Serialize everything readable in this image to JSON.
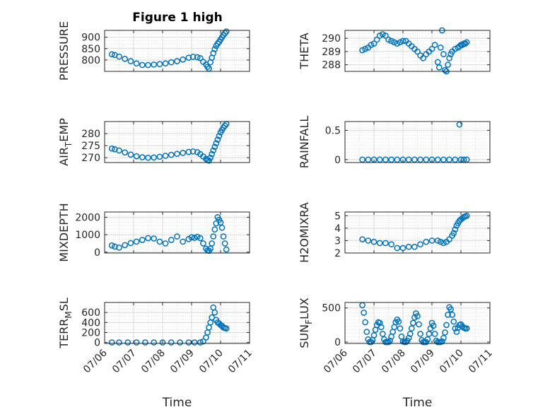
{
  "figure": {
    "title": "Figure 1 high",
    "marker_color": "#0072BD",
    "x_tick_labels": [
      "07/06",
      "07/07",
      "07/08",
      "07/09",
      "07/10",
      "07/11"
    ],
    "x_label": "Time"
  },
  "chart_data": [
    {
      "type": "scatter",
      "marker": "circle",
      "id": "pressure",
      "title": "Figure 1 high",
      "ylabel_parts": [
        "PRESSURE"
      ],
      "ylim": [
        750,
        930
      ],
      "yticks": [
        800,
        850,
        900
      ],
      "xlim": [
        0,
        5
      ],
      "x": [
        0.25,
        0.35,
        0.5,
        0.7,
        0.9,
        1.1,
        1.3,
        1.5,
        1.7,
        1.9,
        2.1,
        2.3,
        2.5,
        2.7,
        2.9,
        3.05,
        3.2,
        3.3,
        3.4,
        3.5,
        3.55,
        3.6,
        3.65,
        3.7,
        3.75,
        3.8,
        3.85,
        3.9,
        3.95,
        4.0,
        4.05,
        4.1,
        4.15,
        4.2
      ],
      "y": [
        825,
        822,
        815,
        805,
        795,
        785,
        778,
        778,
        780,
        782,
        785,
        790,
        795,
        802,
        810,
        814,
        812,
        808,
        792,
        780,
        770,
        762,
        790,
        810,
        830,
        848,
        862,
        872,
        880,
        890,
        900,
        910,
        918,
        925
      ]
    },
    {
      "type": "scatter",
      "marker": "circle",
      "id": "theta",
      "ylabel_parts": [
        "THETA"
      ],
      "ylim": [
        287.5,
        290.6
      ],
      "yticks": [
        288,
        289,
        290
      ],
      "xlim": [
        0,
        5
      ],
      "x": [
        0.6,
        0.7,
        0.8,
        0.9,
        1.0,
        1.1,
        1.2,
        1.3,
        1.4,
        1.5,
        1.6,
        1.7,
        1.8,
        1.9,
        2.0,
        2.1,
        2.2,
        2.3,
        2.4,
        2.5,
        2.6,
        2.7,
        2.8,
        2.9,
        3.0,
        3.1,
        3.2,
        3.25,
        3.3,
        3.35,
        3.4,
        3.45,
        3.5,
        3.55,
        3.6,
        3.65,
        3.7,
        3.8,
        3.9,
        3.95,
        4.0,
        4.05,
        4.1,
        4.15,
        4.2
      ],
      "y": [
        289.1,
        289.2,
        289.3,
        289.5,
        289.6,
        289.9,
        290.2,
        290.3,
        290.2,
        289.9,
        289.8,
        289.7,
        289.6,
        289.7,
        289.8,
        289.8,
        289.6,
        289.4,
        289.2,
        289.0,
        288.7,
        288.5,
        288.8,
        289.0,
        289.2,
        289.5,
        288.2,
        287.8,
        289.3,
        290.6,
        288.8,
        287.6,
        287.5,
        288.0,
        288.5,
        288.8,
        289.0,
        289.2,
        289.3,
        289.4,
        289.5,
        289.5,
        289.6,
        289.6,
        289.7
      ]
    },
    {
      "type": "scatter",
      "marker": "circle",
      "id": "air_temp",
      "ylabel_parts": [
        "AIR",
        "T",
        "EMP"
      ],
      "ylim": [
        268,
        285
      ],
      "yticks": [
        270,
        275,
        280
      ],
      "xlim": [
        0,
        5
      ],
      "x": [
        0.25,
        0.35,
        0.5,
        0.7,
        0.9,
        1.1,
        1.3,
        1.5,
        1.7,
        1.9,
        2.1,
        2.3,
        2.5,
        2.7,
        2.9,
        3.05,
        3.2,
        3.3,
        3.4,
        3.5,
        3.55,
        3.6,
        3.65,
        3.7,
        3.75,
        3.8,
        3.85,
        3.9,
        3.95,
        4.0,
        4.05,
        4.1,
        4.15,
        4.2
      ],
      "y": [
        273.8,
        273.5,
        273.0,
        272.2,
        271.3,
        270.6,
        270.2,
        270.0,
        270.1,
        270.4,
        270.8,
        271.2,
        271.6,
        272.0,
        272.4,
        272.6,
        272.3,
        271.5,
        270.5,
        269.5,
        269.0,
        268.8,
        270.0,
        271.5,
        273.0,
        274.5,
        276.0,
        277.5,
        279.0,
        280.5,
        281.5,
        282.5,
        283.3,
        284.0
      ]
    },
    {
      "type": "scatter",
      "marker": "circle",
      "id": "rainfall",
      "ylabel_parts": [
        "RAINFALL"
      ],
      "ylim": [
        -0.05,
        0.65
      ],
      "yticks": [
        0,
        0.5
      ],
      "ytick_labels": [
        "0",
        "0.5"
      ],
      "xlim": [
        0,
        5
      ],
      "x": [
        0.6,
        0.8,
        1.0,
        1.2,
        1.4,
        1.6,
        1.8,
        2.0,
        2.2,
        2.4,
        2.6,
        2.8,
        3.0,
        3.2,
        3.4,
        3.6,
        3.8,
        3.95,
        4.0,
        4.1,
        4.2
      ],
      "y": [
        0,
        0,
        0,
        0,
        0,
        0,
        0,
        0,
        0,
        0,
        0,
        0,
        0,
        0,
        0,
        0,
        0,
        0.6,
        0,
        0,
        0
      ]
    },
    {
      "type": "scatter",
      "marker": "circle",
      "id": "mixdepth",
      "ylabel_parts": [
        "MIXDEPTH"
      ],
      "ylim": [
        -50,
        2300
      ],
      "yticks": [
        0,
        1000,
        2000
      ],
      "xlim": [
        0,
        5
      ],
      "x": [
        0.25,
        0.35,
        0.5,
        0.7,
        0.9,
        1.1,
        1.3,
        1.5,
        1.7,
        1.9,
        2.1,
        2.3,
        2.5,
        2.7,
        2.9,
        3.0,
        3.1,
        3.2,
        3.3,
        3.4,
        3.5,
        3.55,
        3.6,
        3.65,
        3.7,
        3.75,
        3.8,
        3.85,
        3.9,
        3.95,
        4.0,
        4.05,
        4.1,
        4.15,
        4.2
      ],
      "y": [
        380,
        320,
        260,
        400,
        520,
        600,
        700,
        800,
        780,
        600,
        500,
        700,
        900,
        600,
        750,
        850,
        820,
        880,
        800,
        500,
        200,
        100,
        80,
        200,
        500,
        900,
        1300,
        1650,
        2000,
        1850,
        1700,
        1400,
        900,
        500,
        150
      ]
    },
    {
      "type": "scatter",
      "marker": "circle",
      "id": "h2omixra",
      "ylabel_parts": [
        "H2OMIXRA"
      ],
      "ylim": [
        2,
        5.3
      ],
      "yticks": [
        2,
        3,
        4,
        5
      ],
      "xlim": [
        0,
        5
      ],
      "x": [
        0.6,
        0.8,
        1.0,
        1.2,
        1.4,
        1.6,
        1.8,
        2.0,
        2.2,
        2.4,
        2.6,
        2.8,
        3.0,
        3.2,
        3.3,
        3.4,
        3.5,
        3.6,
        3.7,
        3.75,
        3.8,
        3.85,
        3.9,
        3.95,
        4.0,
        4.05,
        4.1,
        4.15,
        4.2
      ],
      "y": [
        3.1,
        3.0,
        2.9,
        2.8,
        2.8,
        2.7,
        2.4,
        2.4,
        2.5,
        2.5,
        2.7,
        2.9,
        3.0,
        3.0,
        2.9,
        2.8,
        2.9,
        3.1,
        3.4,
        3.6,
        3.9,
        4.2,
        4.4,
        4.6,
        4.7,
        4.8,
        4.9,
        4.95,
        5.0
      ]
    },
    {
      "type": "scatter",
      "marker": "circle",
      "id": "terr_msl",
      "ylabel_parts": [
        "TERR",
        "M",
        "SL"
      ],
      "ylim": [
        -20,
        800
      ],
      "yticks": [
        0,
        200,
        400,
        600
      ],
      "xlim": [
        0,
        5
      ],
      "x": [
        0.25,
        0.5,
        0.8,
        1.1,
        1.4,
        1.7,
        2.0,
        2.3,
        2.6,
        2.9,
        3.1,
        3.3,
        3.4,
        3.5,
        3.55,
        3.6,
        3.65,
        3.7,
        3.75,
        3.8,
        3.85,
        3.9,
        3.95,
        4.0,
        4.05,
        4.1,
        4.15,
        4.2
      ],
      "y": [
        0,
        0,
        0,
        0,
        0,
        0,
        0,
        0,
        0,
        0,
        0,
        0,
        20,
        100,
        200,
        300,
        400,
        500,
        700,
        600,
        450,
        400,
        380,
        350,
        330,
        300,
        290,
        280
      ]
    },
    {
      "type": "scatter",
      "marker": "circle",
      "id": "sun_flux",
      "ylabel_parts": [
        "SUN",
        "F",
        "LUX"
      ],
      "ylim": [
        -20,
        580
      ],
      "yticks": [
        0,
        500
      ],
      "xlim": [
        0,
        5
      ],
      "x": [
        0.6,
        0.65,
        0.7,
        0.75,
        0.8,
        0.85,
        0.9,
        0.95,
        1.0,
        1.05,
        1.1,
        1.15,
        1.2,
        1.25,
        1.3,
        1.35,
        1.4,
        1.45,
        1.5,
        1.55,
        1.6,
        1.65,
        1.7,
        1.75,
        1.8,
        1.85,
        1.9,
        1.95,
        2.0,
        2.05,
        2.1,
        2.15,
        2.2,
        2.25,
        2.3,
        2.35,
        2.4,
        2.45,
        2.5,
        2.55,
        2.6,
        2.65,
        2.7,
        2.75,
        2.8,
        2.85,
        2.9,
        2.95,
        3.0,
        3.05,
        3.1,
        3.15,
        3.2,
        3.25,
        3.3,
        3.35,
        3.4,
        3.45,
        3.5,
        3.55,
        3.6,
        3.65,
        3.7,
        3.75,
        3.8,
        3.85,
        3.9,
        3.95,
        4.0,
        4.05,
        4.1,
        4.15,
        4.2
      ],
      "y": [
        540,
        430,
        290,
        150,
        40,
        0,
        0,
        30,
        100,
        180,
        250,
        290,
        280,
        220,
        120,
        40,
        0,
        0,
        0,
        20,
        80,
        150,
        220,
        290,
        330,
        300,
        200,
        80,
        10,
        0,
        0,
        20,
        60,
        120,
        200,
        280,
        360,
        420,
        380,
        260,
        120,
        30,
        0,
        0,
        0,
        40,
        120,
        200,
        280,
        240,
        120,
        20,
        0,
        0,
        0,
        10,
        60,
        140,
        250,
        400,
        510,
        480,
        400,
        300,
        200,
        150,
        210,
        250,
        260,
        230,
        210,
        200,
        200
      ]
    }
  ]
}
